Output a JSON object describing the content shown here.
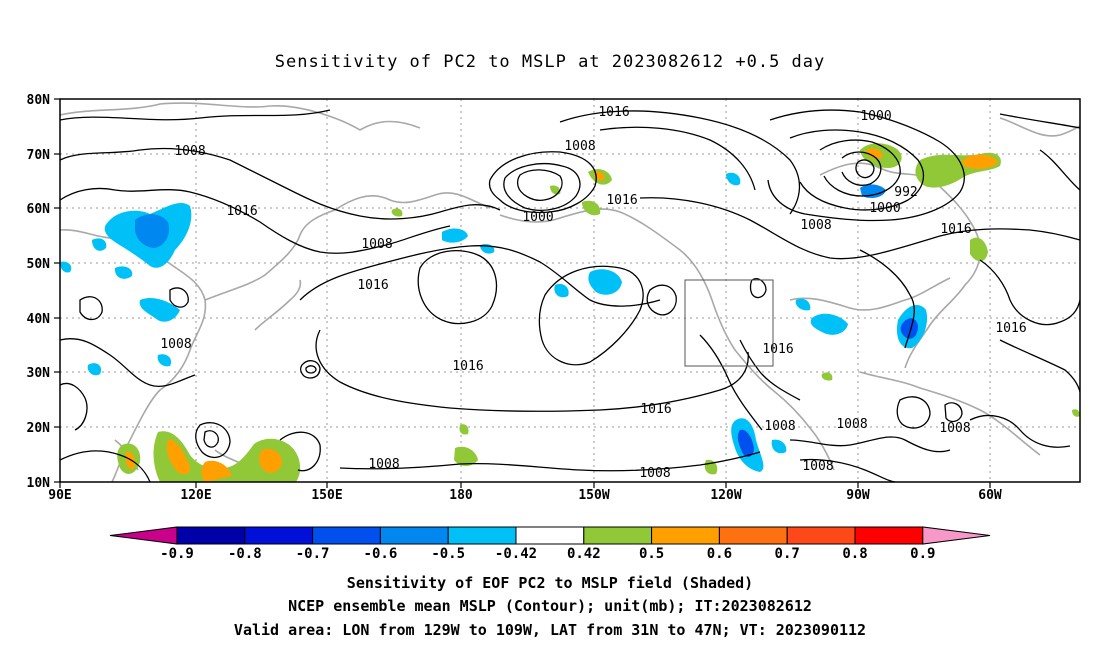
{
  "title": "Sensitivity of PC2 to MSLP at 2023082612 +0.5 day",
  "lat_labels": [
    "80N",
    "70N",
    "60N",
    "50N",
    "40N",
    "30N",
    "20N",
    "10N"
  ],
  "lon_labels": [
    "90E",
    "120E",
    "150E",
    "180",
    "150W",
    "120W",
    "90W",
    "60W"
  ],
  "contour_labels": [
    {
      "text": "1016"
    },
    {
      "text": "1008"
    },
    {
      "text": "1016"
    },
    {
      "text": "1008"
    },
    {
      "text": "1016"
    },
    {
      "text": "1008"
    },
    {
      "text": "1016"
    },
    {
      "text": "1008"
    },
    {
      "text": "1000"
    },
    {
      "text": "1016"
    },
    {
      "text": "1016"
    },
    {
      "text": "1008"
    },
    {
      "text": "1016"
    },
    {
      "text": "1008"
    },
    {
      "text": "1000"
    },
    {
      "text": "992"
    },
    {
      "text": "1000"
    },
    {
      "text": "1008"
    },
    {
      "text": "1016"
    },
    {
      "text": "1016"
    },
    {
      "text": "1008"
    },
    {
      "text": "1008"
    },
    {
      "text": "1008"
    }
  ],
  "colorbar": {
    "labels": [
      "-0.9",
      "-0.8",
      "-0.7",
      "-0.6",
      "-0.5",
      "-0.42",
      "0.42",
      "0.5",
      "0.6",
      "0.7",
      "0.8",
      "0.9"
    ],
    "colors": [
      "#c8008a",
      "#0000a8",
      "#0010d8",
      "#0050f0",
      "#0088f0",
      "#00c0f8",
      "#ffffff",
      "#90c838",
      "#ffa000",
      "#ff7010",
      "#ff4818",
      "#ff0000",
      "#f898c8"
    ]
  },
  "footer": [
    "Sensitivity of EOF PC2 to MSLP field (Shaded)",
    "NCEP ensemble mean MSLP (Contour); unit(mb); IT:2023082612",
    "Valid area: LON from 129W to 109W, LAT from 31N to 47N; VT: 2023090112"
  ]
}
